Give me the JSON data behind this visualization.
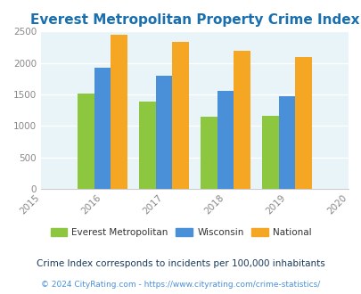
{
  "title": "Everest Metropolitan Property Crime Index",
  "years": [
    2016,
    2017,
    2018,
    2019
  ],
  "everest": [
    1510,
    1380,
    1145,
    1165
  ],
  "wisconsin": [
    1930,
    1800,
    1555,
    1470
  ],
  "national": [
    2445,
    2340,
    2200,
    2095
  ],
  "color_everest": "#8dc63f",
  "color_wisconsin": "#4a90d9",
  "color_national": "#f5a623",
  "xlim": [
    2015,
    2020
  ],
  "ylim": [
    0,
    2500
  ],
  "yticks": [
    0,
    500,
    1000,
    1500,
    2000,
    2500
  ],
  "xticks": [
    2015,
    2016,
    2017,
    2018,
    2019,
    2020
  ],
  "title_color": "#1a6faf",
  "title_fontsize": 11,
  "legend_labels": [
    "Everest Metropolitan",
    "Wisconsin",
    "National"
  ],
  "legend_text_color": "#333333",
  "footnote1": "Crime Index corresponds to incidents per 100,000 inhabitants",
  "footnote2": "© 2024 CityRating.com - https://www.cityrating.com/crime-statistics/",
  "footnote1_color": "#1a3a5c",
  "footnote2_color": "#4a90d9",
  "bg_color": "#e8f4f8",
  "bar_width": 0.27,
  "grid_color": "#ffffff",
  "tick_label_color": "#888888"
}
